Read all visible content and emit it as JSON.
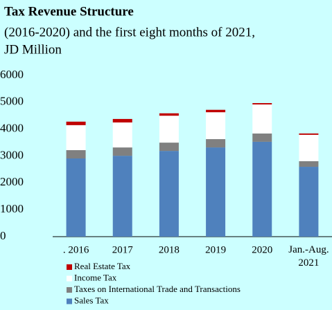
{
  "chart_data": {
    "type": "stacked_bar",
    "title": "Tax Revenue Structure",
    "subtitle_lines": [
      "(2016-2020) and the first eight months of 2021,",
      "JD Million"
    ],
    "categories": [
      ". 2016",
      "2017",
      "2018",
      "2019",
      "2020",
      "Jan.-Aug.\n2021"
    ],
    "series": [
      {
        "name": "Sales Tax",
        "color": "#4f81bd",
        "values": [
          2910,
          3010,
          3190,
          3320,
          3530,
          2600
        ]
      },
      {
        "name": "Taxes on International Trade and Transactions",
        "color": "#808080",
        "values": [
          310,
          310,
          310,
          310,
          310,
          210
        ]
      },
      {
        "name": "Income Tax",
        "color": "#ffffff",
        "values": [
          930,
          930,
          1000,
          1000,
          1080,
          980
        ]
      },
      {
        "name": "Real Estate Tax",
        "color": "#c00000",
        "values": [
          130,
          130,
          90,
          90,
          50,
          50
        ]
      }
    ],
    "ylim": [
      0,
      6000
    ],
    "yticks": [
      0,
      1000,
      2000,
      3000,
      4000,
      5000,
      6000
    ],
    "grid": false
  }
}
